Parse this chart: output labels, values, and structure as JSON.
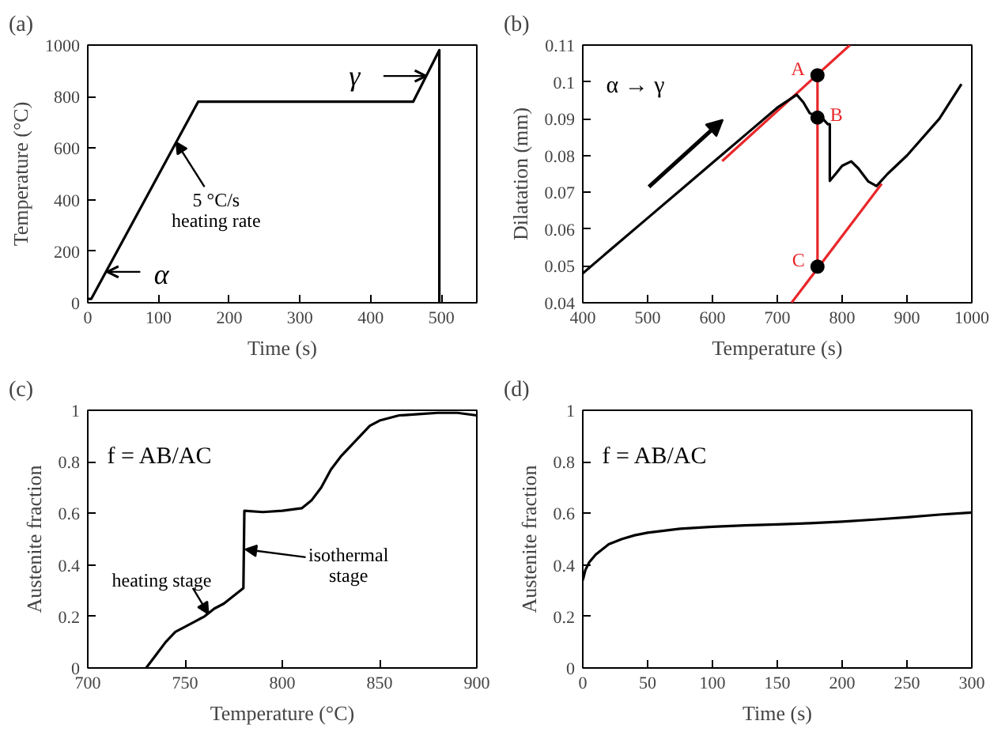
{
  "chart_data": [
    {
      "type": "line",
      "title": "(a)",
      "xlabel": "Time (s)",
      "ylabel": "Temperature (°C)",
      "xlim": [
        0,
        550
      ],
      "ylim": [
        0,
        1000
      ],
      "xticks": [
        0,
        100,
        200,
        300,
        400,
        500
      ],
      "yticks": [
        0,
        200,
        400,
        600,
        800,
        1000
      ],
      "grid": false,
      "marker": "none",
      "line_style": "solid",
      "x": [
        0,
        5,
        156,
        460,
        497,
        497
      ],
      "series": [
        {
          "color": "#000000",
          "values": [
            15,
            15,
            780,
            780,
            980,
            0
          ]
        }
      ],
      "annotations": [
        {
          "text": "α",
          "x": 25,
          "y": 120
        },
        {
          "text": "γ",
          "x": 478,
          "y": 880
        },
        {
          "text": "5 °C/s\nheating rate",
          "x": 125,
          "y": 623
        }
      ]
    },
    {
      "type": "line",
      "title": "(b)",
      "xlabel": "Temperature (s)",
      "ylabel": "Dilatation (mm)",
      "xlim": [
        400,
        1000
      ],
      "ylim": [
        0.04,
        0.11
      ],
      "xticks": [
        400,
        500,
        600,
        700,
        800,
        900,
        1000
      ],
      "yticks": [
        0.04,
        0.05,
        0.06,
        0.07,
        0.08,
        0.09,
        0.1,
        0.11
      ],
      "grid": false,
      "marker": "none",
      "line_style": "solid",
      "series": [
        {
          "color": "#e8272a",
          "x": [
            615,
            812
          ],
          "values": [
            0.0785,
            0.11
          ]
        },
        {
          "color": "#e8272a",
          "x": [
            722,
            861
          ],
          "values": [
            0.04,
            0.0723
          ]
        },
        {
          "color": "#e8272a",
          "x": [
            762,
            762
          ],
          "values": [
            0.1018,
            0.0498
          ]
        },
        {
          "color": "#000000",
          "x": [
            400,
            450,
            500,
            550,
            600,
            650,
            700,
            730,
            740,
            750,
            762,
            770,
            778,
            781,
            781,
            790,
            800,
            814,
            825,
            840,
            853,
            870,
            900,
            950,
            984
          ],
          "values": [
            0.048,
            0.0555,
            0.063,
            0.0705,
            0.078,
            0.0855,
            0.093,
            0.0965,
            0.0945,
            0.0915,
            0.0905,
            0.09,
            0.0885,
            0.0885,
            0.0731,
            0.075,
            0.0772,
            0.0784,
            0.0765,
            0.073,
            0.0717,
            0.075,
            0.08,
            0.09,
            0.0994
          ]
        },
        {
          "type": "scatter",
          "marker": "circle",
          "color": "#000000",
          "x": [
            762,
            762,
            762
          ],
          "values": [
            0.1018,
            0.0903,
            0.0498
          ]
        }
      ],
      "annotations": [
        "α → γ",
        {
          "text": "A",
          "x": 762,
          "y": 0.1018
        },
        {
          "text": "B",
          "x": 762,
          "y": 0.0903
        },
        {
          "text": "C",
          "x": 762,
          "y": 0.0498
        }
      ]
    },
    {
      "type": "line",
      "title": "(c)",
      "xlabel": "Temperature (°C)",
      "ylabel": "Austenite fraction",
      "xlim": [
        700,
        900
      ],
      "ylim": [
        0,
        1
      ],
      "xticks": [
        700,
        750,
        800,
        850,
        900
      ],
      "yticks": [
        0,
        0.2,
        0.4,
        0.6,
        0.8,
        1
      ],
      "grid": false,
      "marker": "none",
      "line_style": "solid",
      "x": [
        730,
        735,
        740,
        745,
        750,
        755,
        760,
        765,
        770,
        775,
        780,
        780.5,
        790,
        800,
        810,
        815,
        820,
        825,
        830,
        835,
        840,
        845,
        850,
        860,
        870,
        880,
        890,
        900
      ],
      "series": [
        {
          "color": "#000000",
          "values": [
            0,
            0.05,
            0.1,
            0.14,
            0.16,
            0.18,
            0.2,
            0.23,
            0.25,
            0.28,
            0.31,
            0.61,
            0.605,
            0.61,
            0.62,
            0.65,
            0.7,
            0.77,
            0.82,
            0.86,
            0.9,
            0.94,
            0.96,
            0.98,
            0.985,
            0.99,
            0.99,
            0.98
          ]
        }
      ],
      "annotations": [
        "f = AB/AC",
        {
          "text": "heating stage",
          "x": 762,
          "y": 0.21
        },
        {
          "text": "isothermal\nstage",
          "x": 781,
          "y": 0.46
        }
      ]
    },
    {
      "type": "line",
      "title": "(d)",
      "xlabel": "Time (s)",
      "ylabel": "Austenite fraction",
      "xlim": [
        0,
        300
      ],
      "ylim": [
        0,
        1
      ],
      "xticks": [
        0,
        50,
        100,
        150,
        200,
        250,
        300
      ],
      "yticks": [
        0,
        0.2,
        0.4,
        0.6,
        0.8,
        1
      ],
      "grid": false,
      "marker": "none",
      "line_style": "solid",
      "x": [
        0,
        2,
        5,
        10,
        15,
        20,
        30,
        40,
        50,
        75,
        100,
        125,
        150,
        175,
        200,
        225,
        250,
        275,
        300
      ],
      "series": [
        {
          "color": "#000000",
          "values": [
            0.34,
            0.38,
            0.41,
            0.44,
            0.46,
            0.48,
            0.5,
            0.515,
            0.525,
            0.54,
            0.548,
            0.553,
            0.557,
            0.562,
            0.568,
            0.576,
            0.585,
            0.595,
            0.603
          ]
        }
      ],
      "annotations": [
        "f = AB/AC"
      ]
    }
  ]
}
